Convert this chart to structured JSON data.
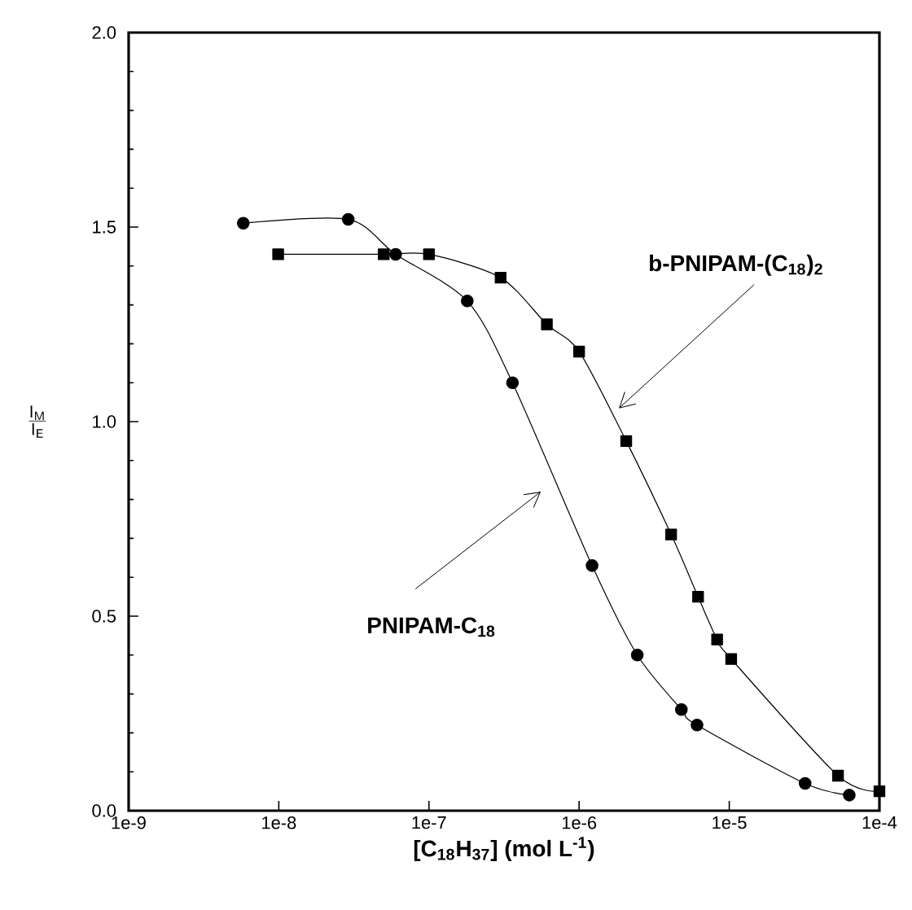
{
  "chart_data": {
    "type": "line",
    "xlabel": "[C$_{18}$H$_{37}$] (mol L$^{-1}$)",
    "ylabel": "\\frac{\\mathsf{I}_{\\mathsf{M}}}{\\mathsf{I}_{\\mathsf{E}}}",
    "log": "x",
    "grid": false,
    "xlim": [
      1e-09,
      0.0001
    ],
    "ylim": [
      0,
      2
    ],
    "xticks": [
      {
        "value": 1e-09,
        "label": "1e-9"
      },
      {
        "value": 1e-08,
        "label": "1e-8"
      },
      {
        "value": 1e-07,
        "label": "1e-7"
      },
      {
        "value": 1e-06,
        "label": "1e-6"
      },
      {
        "value": 1e-05,
        "label": "1e-5"
      },
      {
        "value": 0.0001,
        "label": "1e-4"
      }
    ],
    "yticks": [
      {
        "value": 0,
        "label": "0.0"
      },
      {
        "value": 0.5,
        "label": "0.5"
      },
      {
        "value": 1,
        "label": "1.0"
      },
      {
        "value": 1.5,
        "label": "1.5"
      },
      {
        "value": 2,
        "label": "2.0"
      }
    ],
    "series": [
      {
        "color": "#000000",
        "marker": "circle",
        "x": [
          5.8e-09,
          2.9e-08,
          6e-08,
          1.8e-07,
          3.6e-07,
          1.22e-06,
          2.44e-06,
          4.8e-06,
          6.1e-06,
          3.2e-05,
          6.3e-05
        ],
        "values": [
          1.51,
          1.52,
          1.43,
          1.31,
          1.1,
          0.63,
          0.4,
          0.26,
          0.22,
          0.07,
          0.04
        ]
      },
      {
        "color": "#000000",
        "marker": "square",
        "x": [
          9.9e-09,
          5e-08,
          1e-07,
          3e-07,
          6.1e-07,
          1e-06,
          2.06e-06,
          4.1e-06,
          6.2e-06,
          8.3e-06,
          1.03e-05,
          5.3e-05,
          0.0001
        ],
        "values": [
          1.43,
          1.43,
          1.43,
          1.37,
          1.25,
          1.18,
          0.95,
          0.71,
          0.55,
          0.44,
          0.39,
          0.09,
          0.05
        ]
      }
    ],
    "annotations": [
      "PNIPAM-C$_{18}$",
      "b-PNIPAM-(C$_{18}$)$_{2}$"
    ]
  }
}
